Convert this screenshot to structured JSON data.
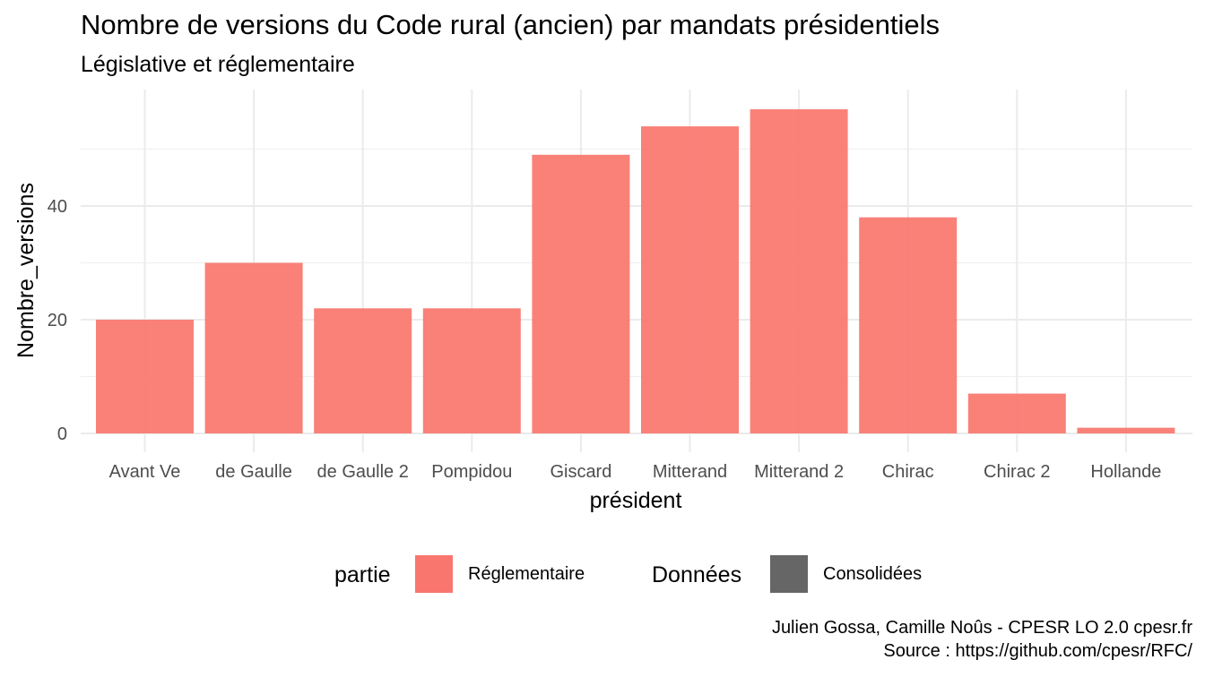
{
  "title": "Nombre de versions du Code rural (ancien) par mandats présidentiels",
  "subtitle": "Législative et réglementaire",
  "caption": {
    "line1": "Julien Gossa, Camille Noûs - CPESR LO 2.0 cpesr.fr",
    "line2": "Source : https://github.com/cpesr/RFC/"
  },
  "legend": {
    "fill_title": "partie",
    "fill_items": [
      {
        "label": "Réglementaire",
        "color": "#F8766D"
      }
    ],
    "alpha_title": "Données",
    "alpha_items": [
      {
        "label": "Consolidées",
        "color": "#666666"
      }
    ],
    "placement": "bottom"
  },
  "chart_data": {
    "type": "bar",
    "categories": [
      "Avant Ve",
      "de Gaulle",
      "de Gaulle 2",
      "Pompidou",
      "Giscard",
      "Mitterand",
      "Mitterand 2",
      "Chirac",
      "Chirac 2",
      "Hollande"
    ],
    "series": [
      {
        "name": "Réglementaire",
        "values": [
          20,
          30,
          22,
          22,
          49,
          54,
          57,
          38,
          7,
          1
        ],
        "color": "#F8766D"
      }
    ],
    "xlabel": "président",
    "ylabel": "Nombre_versions",
    "ylim": [
      0,
      57
    ],
    "yticks": [
      0,
      20,
      40
    ],
    "grid": true,
    "bar_color": "#F8766D"
  }
}
